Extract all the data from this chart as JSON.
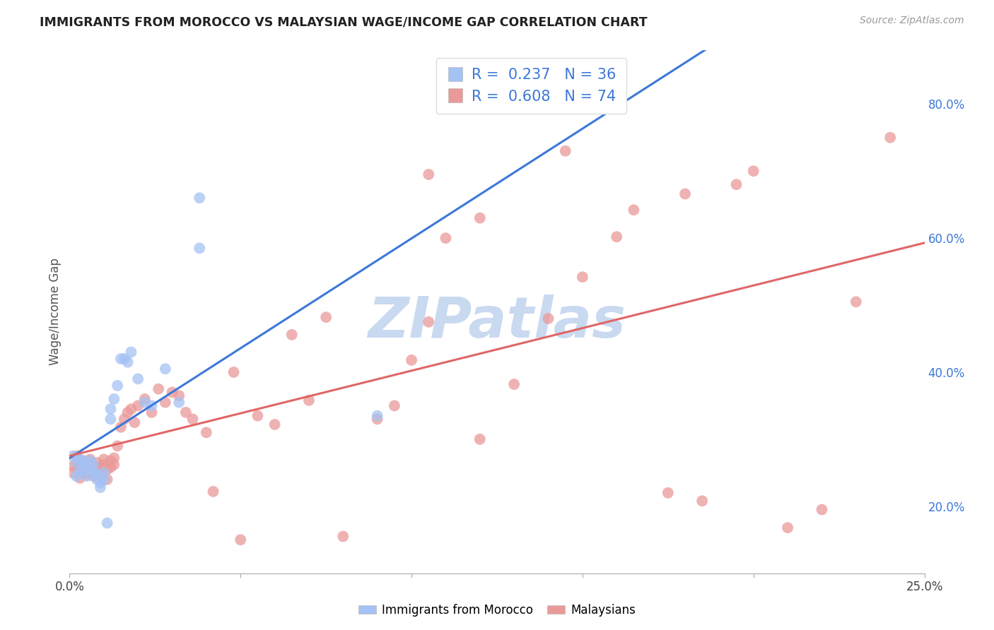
{
  "title": "IMMIGRANTS FROM MOROCCO VS MALAYSIAN WAGE/INCOME GAP CORRELATION CHART",
  "source": "Source: ZipAtlas.com",
  "ylabel": "Wage/Income Gap",
  "xlim": [
    0.0,
    0.25
  ],
  "ylim": [
    0.1,
    0.88
  ],
  "xticks": [
    0.0,
    0.05,
    0.1,
    0.15,
    0.2,
    0.25
  ],
  "xtick_labels": [
    "0.0%",
    "",
    "",
    "",
    "",
    "25.0%"
  ],
  "ytick_labels_right": [
    "20.0%",
    "40.0%",
    "60.0%",
    "80.0%"
  ],
  "yticks": [
    0.2,
    0.4,
    0.6,
    0.8
  ],
  "blue_R": 0.237,
  "blue_N": 36,
  "pink_R": 0.608,
  "pink_N": 74,
  "blue_color": "#a4c2f4",
  "pink_color": "#ea9999",
  "blue_line_color": "#3c78d8",
  "pink_line_color": "#e06666",
  "watermark": "ZIPatlas",
  "watermark_color": "#c9d9f0",
  "legend_label_blue": "Immigrants from Morocco",
  "legend_label_pink": "Malaysians",
  "blue_scatter_x": [
    0.001,
    0.002,
    0.002,
    0.003,
    0.003,
    0.004,
    0.004,
    0.005,
    0.005,
    0.006,
    0.006,
    0.007,
    0.007,
    0.008,
    0.008,
    0.009,
    0.009,
    0.01,
    0.01,
    0.011,
    0.012,
    0.012,
    0.013,
    0.014,
    0.015,
    0.016,
    0.017,
    0.018,
    0.02,
    0.022,
    0.024,
    0.028,
    0.032,
    0.038,
    0.038,
    0.09
  ],
  "blue_scatter_y": [
    0.275,
    0.265,
    0.245,
    0.27,
    0.252,
    0.268,
    0.256,
    0.26,
    0.245,
    0.255,
    0.268,
    0.262,
    0.25,
    0.248,
    0.24,
    0.235,
    0.228,
    0.24,
    0.25,
    0.175,
    0.33,
    0.345,
    0.36,
    0.38,
    0.42,
    0.42,
    0.415,
    0.43,
    0.39,
    0.355,
    0.35,
    0.405,
    0.355,
    0.66,
    0.585,
    0.335
  ],
  "pink_scatter_x": [
    0.001,
    0.001,
    0.002,
    0.002,
    0.003,
    0.003,
    0.004,
    0.004,
    0.005,
    0.005,
    0.006,
    0.006,
    0.007,
    0.007,
    0.008,
    0.008,
    0.009,
    0.009,
    0.01,
    0.01,
    0.011,
    0.011,
    0.012,
    0.012,
    0.013,
    0.013,
    0.014,
    0.015,
    0.016,
    0.017,
    0.018,
    0.019,
    0.02,
    0.022,
    0.024,
    0.026,
    0.028,
    0.03,
    0.032,
    0.034,
    0.036,
    0.04,
    0.042,
    0.048,
    0.055,
    0.06,
    0.065,
    0.07,
    0.075,
    0.09,
    0.095,
    0.1,
    0.105,
    0.11,
    0.12,
    0.13,
    0.14,
    0.15,
    0.16,
    0.175,
    0.185,
    0.195,
    0.2,
    0.21,
    0.22,
    0.23,
    0.24,
    0.165,
    0.12,
    0.18,
    0.05,
    0.08,
    0.105,
    0.145
  ],
  "pink_scatter_y": [
    0.26,
    0.25,
    0.265,
    0.275,
    0.258,
    0.242,
    0.268,
    0.255,
    0.262,
    0.248,
    0.256,
    0.27,
    0.26,
    0.245,
    0.255,
    0.265,
    0.248,
    0.258,
    0.262,
    0.27,
    0.255,
    0.24,
    0.258,
    0.268,
    0.272,
    0.262,
    0.29,
    0.318,
    0.33,
    0.34,
    0.345,
    0.325,
    0.35,
    0.36,
    0.34,
    0.375,
    0.355,
    0.37,
    0.365,
    0.34,
    0.33,
    0.31,
    0.222,
    0.4,
    0.335,
    0.322,
    0.456,
    0.358,
    0.482,
    0.33,
    0.35,
    0.418,
    0.475,
    0.6,
    0.3,
    0.382,
    0.48,
    0.542,
    0.602,
    0.22,
    0.208,
    0.68,
    0.7,
    0.168,
    0.195,
    0.505,
    0.75,
    0.642,
    0.63,
    0.666,
    0.15,
    0.155,
    0.695,
    0.73
  ]
}
